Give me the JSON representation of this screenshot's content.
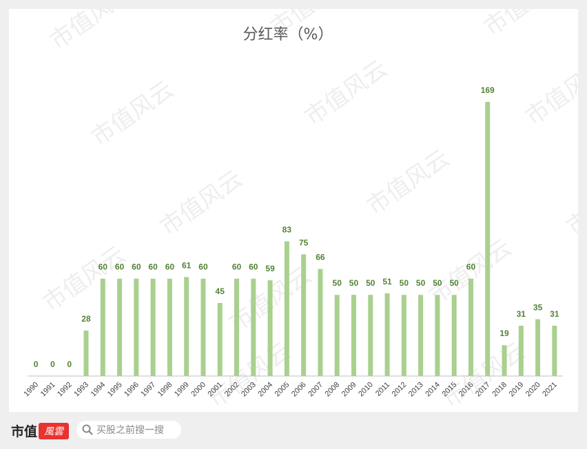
{
  "chart_data": {
    "type": "bar",
    "title": "分红率（%）",
    "xlabel": "",
    "ylabel": "",
    "categories": [
      "1990",
      "1991",
      "1992",
      "1993",
      "1994",
      "1995",
      "1996",
      "1997",
      "1998",
      "1999",
      "2000",
      "2001",
      "2002",
      "2003",
      "2004",
      "2005",
      "2006",
      "2007",
      "2008",
      "2009",
      "2010",
      "2011",
      "2012",
      "2013",
      "2014",
      "2015",
      "2016",
      "2017",
      "2018",
      "2019",
      "2020",
      "2021"
    ],
    "values": [
      0,
      0,
      0,
      28,
      60,
      60,
      60,
      60,
      60,
      61,
      60,
      45,
      60,
      60,
      59,
      83,
      75,
      66,
      50,
      50,
      50,
      51,
      50,
      50,
      50,
      50,
      60,
      169,
      19,
      31,
      35,
      31
    ],
    "ylim": [
      0,
      180
    ],
    "grid": false,
    "legend": "none",
    "bar_color": "#a9d08e",
    "label_color": "#548235"
  },
  "watermark": {
    "text": "市值风云",
    "color": "#eeeeee"
  },
  "footer": {
    "logo_text": "市值",
    "logo_seal_text": "風雲",
    "search_placeholder": "买股之前搜一搜"
  }
}
